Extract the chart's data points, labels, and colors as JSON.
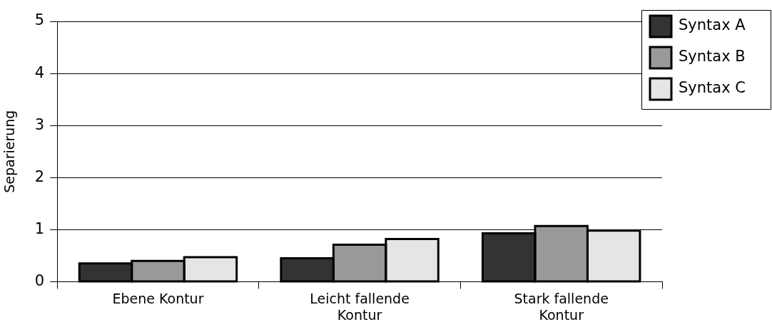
{
  "chart_data": {
    "type": "bar",
    "ylabel": "Separierung",
    "categories": [
      "Ebene Kontur",
      "Leicht fallende Kontur",
      "Stark fallende Kontur"
    ],
    "series": [
      {
        "name": "Syntax A",
        "color": "#333333",
        "values": [
          0.35,
          0.45,
          0.93
        ]
      },
      {
        "name": "Syntax B",
        "color": "#999999",
        "values": [
          0.4,
          0.71,
          1.07
        ]
      },
      {
        "name": "Syntax C",
        "color": "#e5e5e5",
        "values": [
          0.47,
          0.82,
          0.98
        ]
      }
    ],
    "ylim": [
      0,
      5
    ],
    "yticks": [
      0,
      1,
      2,
      3,
      4,
      5
    ],
    "grid": "y",
    "legend": "top right"
  }
}
